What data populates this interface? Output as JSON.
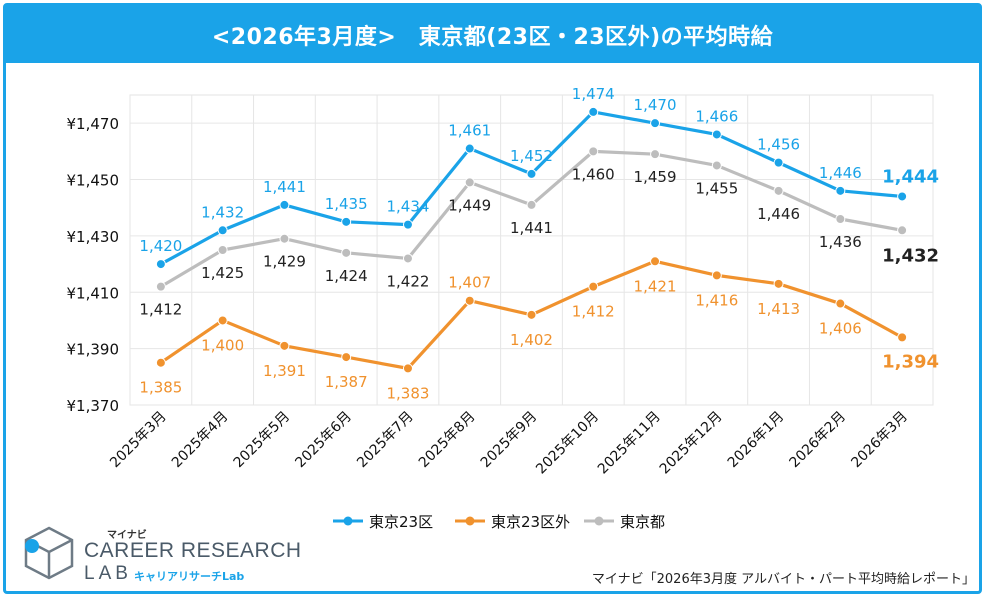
{
  "header": {
    "title": "<2026年3月度>　東京都(23区・23区外)の平均時給"
  },
  "chart_data": {
    "type": "line",
    "title": "<2026年3月度>　東京都(23区・23区外)の平均時給",
    "categories": [
      "2025年3月",
      "2025年4月",
      "2025年5月",
      "2025年6月",
      "2025年7月",
      "2025年8月",
      "2025年9月",
      "2025年10月",
      "2025年11月",
      "2025年12月",
      "2026年1月",
      "2026年2月",
      "2026年3月"
    ],
    "ylim": [
      1370,
      1480
    ],
    "yticks": [
      1370,
      1390,
      1410,
      1430,
      1450,
      1470
    ],
    "ytick_labels": [
      "¥1,370",
      "¥1,390",
      "¥1,410",
      "¥1,430",
      "¥1,450",
      "¥1,470"
    ],
    "grid": true,
    "legend_position": "bottom",
    "series": [
      {
        "name": "東京23区",
        "color": "#1aa3e8",
        "values": [
          1420,
          1432,
          1441,
          1435,
          1434,
          1461,
          1452,
          1474,
          1470,
          1466,
          1456,
          1446,
          1444
        ],
        "labels": [
          "1,420",
          "1,432",
          "1,441",
          "1,435",
          "1,434",
          "1,461",
          "1,452",
          "1,474",
          "1,470",
          "1,466",
          "1,456",
          "1,446",
          "1,444"
        ],
        "label_side": "above"
      },
      {
        "name": "東京23区外",
        "color": "#f0922e",
        "values": [
          1385,
          1400,
          1391,
          1387,
          1383,
          1407,
          1402,
          1412,
          1421,
          1416,
          1413,
          1406,
          1394
        ],
        "labels": [
          "1,385",
          "1,400",
          "1,391",
          "1,387",
          "1,383",
          "1,407",
          "1,402",
          "1,412",
          "1,421",
          "1,416",
          "1,413",
          "1,406",
          "1,394"
        ],
        "label_side": "mixed"
      },
      {
        "name": "東京都",
        "color": "#bdbdbd",
        "text_color": "#222222",
        "values": [
          1412,
          1425,
          1429,
          1424,
          1422,
          1449,
          1441,
          1460,
          1459,
          1455,
          1446,
          1436,
          1432
        ],
        "labels": [
          "1,412",
          "1,425",
          "1,429",
          "1,424",
          "1,422",
          "1,449",
          "1,441",
          "1,460",
          "1,459",
          "1,455",
          "1,446",
          "1,436",
          "1,432"
        ],
        "label_side": "below"
      }
    ]
  },
  "brand": {
    "mynavi": "マイナビ",
    "main": "CAREER RESEARCH",
    "lab": "LAB",
    "sub": "キャリアリサーチLab"
  },
  "source": "マイナビ「2026年3月度 アルバイト・パート平均時給レポート」"
}
